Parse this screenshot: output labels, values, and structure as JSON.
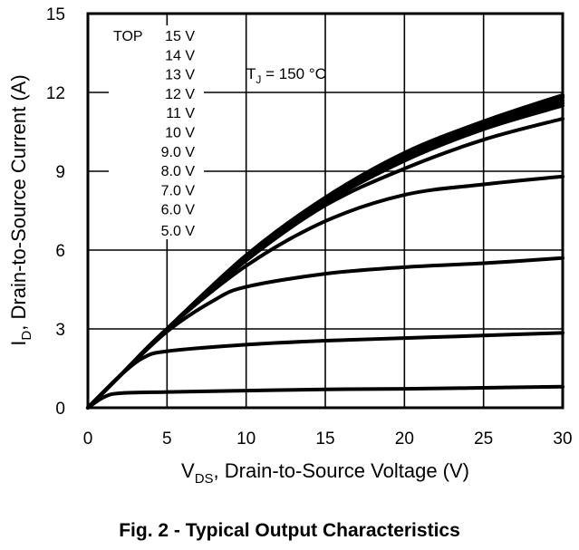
{
  "chart_data": {
    "type": "line",
    "caption": "Fig. 2 - Typical Output Characteristics",
    "xlabel_main": "V",
    "xlabel_sub": "DS",
    "xlabel_rest": ", Drain-to-Source Voltage (V)",
    "ylabel_main": "I",
    "ylabel_sub": "D",
    "ylabel_rest": ", Drain-to-Source Current (A)",
    "xlim": [
      0,
      30
    ],
    "ylim": [
      0,
      15
    ],
    "xticks": [
      "0",
      "5",
      "10",
      "15",
      "20",
      "25",
      "30"
    ],
    "yticks": [
      "0",
      "3",
      "6",
      "9",
      "12",
      "15"
    ],
    "grid": true,
    "annotation_main": "T",
    "annotation_sub": "J",
    "annotation_rest": " = 150 °C",
    "legend_title": "TOP",
    "legend_entries": [
      "15 V",
      "14 V",
      "13 V",
      "12 V",
      "11 V",
      "10 V",
      "9.0 V",
      "8.0 V",
      "7.0 V",
      "6.0 V",
      "5.0 V"
    ],
    "legend_position": "top-left",
    "line_color": "#000000",
    "series": [
      {
        "name": "15 V",
        "x": [
          0,
          2,
          5,
          10,
          15,
          20,
          25,
          30
        ],
        "y": [
          0,
          1.2,
          3.0,
          5.8,
          8.0,
          9.7,
          10.9,
          11.9
        ]
      },
      {
        "name": "14 V",
        "x": [
          0,
          2,
          5,
          10,
          15,
          20,
          25,
          30
        ],
        "y": [
          0,
          1.2,
          3.0,
          5.8,
          8.0,
          9.65,
          10.85,
          11.85
        ]
      },
      {
        "name": "13 V",
        "x": [
          0,
          2,
          5,
          10,
          15,
          20,
          25,
          30
        ],
        "y": [
          0,
          1.2,
          3.0,
          5.75,
          7.95,
          9.6,
          10.8,
          11.8
        ]
      },
      {
        "name": "12 V",
        "x": [
          0,
          2,
          5,
          10,
          15,
          20,
          25,
          30
        ],
        "y": [
          0,
          1.2,
          3.0,
          5.75,
          7.9,
          9.55,
          10.75,
          11.7
        ]
      },
      {
        "name": "11 V",
        "x": [
          0,
          2,
          5,
          10,
          15,
          20,
          25,
          30
        ],
        "y": [
          0,
          1.2,
          3.0,
          5.7,
          7.85,
          9.5,
          10.7,
          11.6
        ]
      },
      {
        "name": "10 V",
        "x": [
          0,
          2,
          5,
          10,
          15,
          20,
          25,
          30
        ],
        "y": [
          0,
          1.2,
          3.0,
          5.65,
          7.8,
          9.4,
          10.6,
          11.5
        ]
      },
      {
        "name": "9.0 V",
        "x": [
          0,
          2,
          5,
          10,
          15,
          20,
          25,
          30
        ],
        "y": [
          0,
          1.2,
          3.0,
          5.6,
          7.7,
          9.1,
          10.2,
          11.0
        ]
      },
      {
        "name": "8.0 V",
        "x": [
          0,
          2,
          5,
          10,
          15,
          20,
          25,
          30
        ],
        "y": [
          0,
          1.2,
          3.0,
          5.4,
          7.1,
          8.1,
          8.5,
          8.8
        ]
      },
      {
        "name": "7.0 V",
        "x": [
          0,
          2,
          5,
          8,
          10,
          15,
          20,
          25,
          30
        ],
        "y": [
          0,
          1.2,
          2.9,
          4.1,
          4.6,
          5.1,
          5.35,
          5.5,
          5.7
        ]
      },
      {
        "name": "6.0 V",
        "x": [
          0,
          2,
          3.5,
          5,
          10,
          15,
          20,
          25,
          30
        ],
        "y": [
          0,
          1.2,
          1.9,
          2.15,
          2.4,
          2.55,
          2.65,
          2.75,
          2.85
        ]
      },
      {
        "name": "5.0 V",
        "x": [
          0,
          1,
          2,
          5,
          10,
          15,
          20,
          25,
          30
        ],
        "y": [
          0,
          0.4,
          0.55,
          0.6,
          0.65,
          0.7,
          0.72,
          0.76,
          0.8
        ]
      }
    ]
  }
}
